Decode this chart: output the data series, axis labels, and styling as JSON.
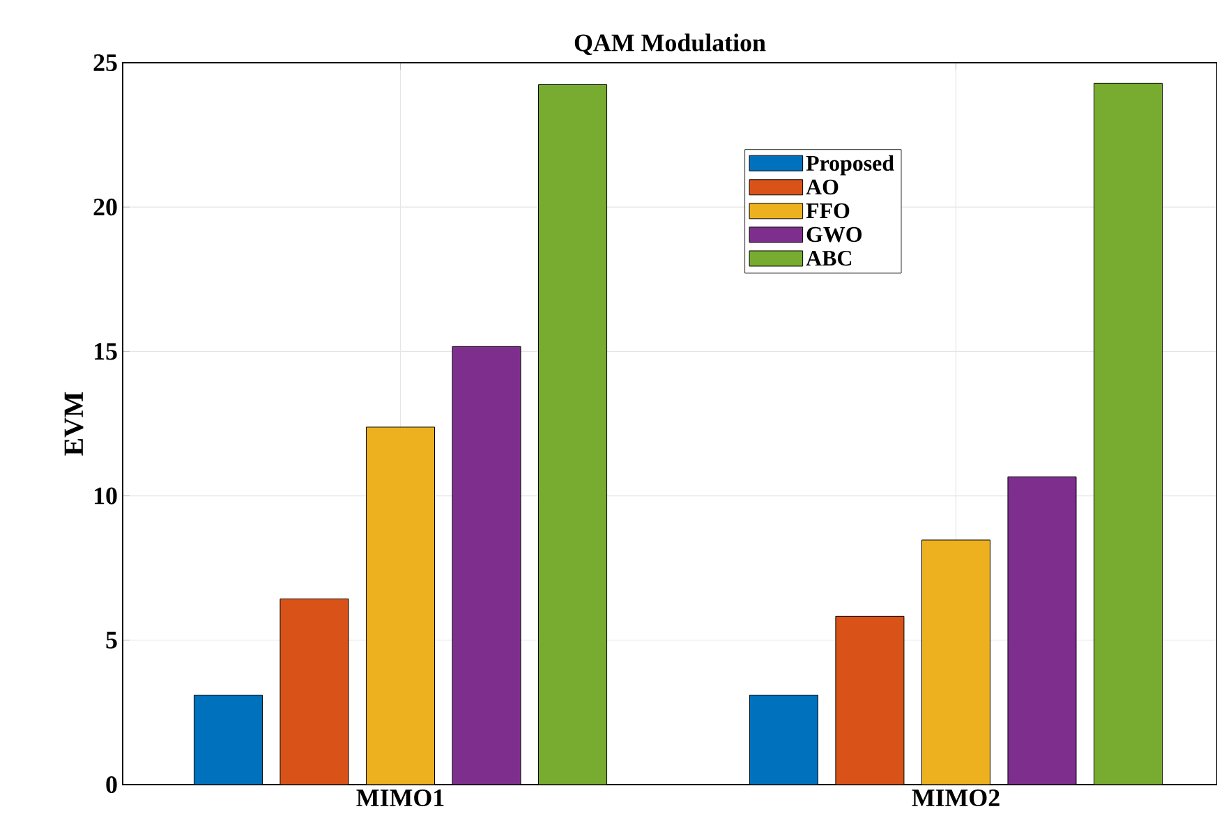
{
  "chart_data": {
    "type": "bar",
    "title": "QAM Modulation",
    "ylabel": "EVM",
    "categories": [
      "MIMO1",
      "MIMO2"
    ],
    "series": [
      {
        "name": "Proposed",
        "color": "#0072bd",
        "values": [
          3.1,
          3.1
        ]
      },
      {
        "name": "AO",
        "color": "#d95319",
        "values": [
          6.43,
          5.83
        ]
      },
      {
        "name": "FFO",
        "color": "#edb120",
        "values": [
          12.38,
          8.47
        ]
      },
      {
        "name": "GWO",
        "color": "#7e2f8e",
        "values": [
          15.17,
          10.66
        ]
      },
      {
        "name": "ABC",
        "color": "#77ac30",
        "values": [
          24.24,
          24.29
        ]
      }
    ],
    "ylim": [
      0,
      25
    ],
    "yticks": [
      0,
      5,
      10,
      15,
      20,
      25
    ],
    "grid": true,
    "legend": "top"
  }
}
